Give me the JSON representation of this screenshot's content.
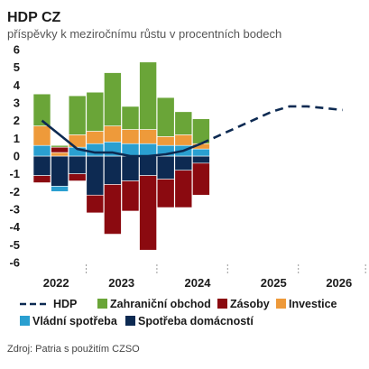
{
  "chart_data": {
    "type": "bar",
    "title": "HDP CZ",
    "subtitle": "příspěvky k meziročnímu růstu v procentních bodech",
    "ylim": [
      -6,
      6
    ],
    "yticks": [
      6,
      5,
      4,
      3,
      2,
      1,
      0,
      -1,
      -2,
      -3,
      -4,
      -5,
      -6
    ],
    "xticks": [
      "2022",
      "2023",
      "2024",
      "2025",
      "2026"
    ],
    "categories": [
      "2022 Q1",
      "2022 Q2",
      "2022 Q3",
      "2022 Q4",
      "2023 Q1",
      "2023 Q2",
      "2023 Q3",
      "2023 Q4",
      "2024 Q1",
      "2024 Q2"
    ],
    "series": [
      {
        "name": "Spotřeba domácností",
        "color": "#0d2a52",
        "values": [
          -1.1,
          -1.7,
          -1.0,
          -2.2,
          -1.6,
          -1.4,
          -1.1,
          -1.3,
          -0.8,
          -0.4
        ]
      },
      {
        "name": "Vládní spotřeba",
        "color": "#2a9fd0",
        "values": [
          0.6,
          -0.3,
          0.5,
          0.7,
          0.8,
          0.7,
          0.7,
          0.6,
          0.6,
          0.4
        ]
      },
      {
        "name": "Investice",
        "color": "#ee9a3a",
        "values": [
          1.1,
          0.2,
          0.7,
          0.7,
          0.9,
          0.8,
          0.8,
          0.5,
          0.6,
          0.3
        ]
      },
      {
        "name": "Zásoby",
        "color": "#8b0a10",
        "values": [
          -0.4,
          0.3,
          -0.4,
          -1.0,
          -2.8,
          -1.7,
          -4.2,
          -1.6,
          -2.1,
          -1.8
        ]
      },
      {
        "name": "Zahraniční obchod",
        "color": "#6aa538",
        "values": [
          1.8,
          0.1,
          2.2,
          2.2,
          3.0,
          1.3,
          3.8,
          2.2,
          1.3,
          1.4
        ]
      }
    ],
    "hdp": {
      "name": "HDP",
      "color": "#0d2a52",
      "actual": [
        {
          "x": 0,
          "y": 2.0
        },
        {
          "x": 1,
          "y": 1.2
        },
        {
          "x": 2,
          "y": 0.4
        },
        {
          "x": 3,
          "y": 0.2
        },
        {
          "x": 4,
          "y": 0.2
        },
        {
          "x": 5,
          "y": 0.0
        },
        {
          "x": 6,
          "y": 0.0
        },
        {
          "x": 7,
          "y": 0.1
        },
        {
          "x": 8,
          "y": 0.3
        },
        {
          "x": 9,
          "y": 0.7
        }
      ],
      "forecast": [
        {
          "x": 9,
          "y": 0.7
        },
        {
          "x": 11,
          "y": 1.6
        },
        {
          "x": 13,
          "y": 2.5
        },
        {
          "x": 14,
          "y": 2.8
        },
        {
          "x": 15,
          "y": 2.8
        },
        {
          "x": 17,
          "y": 2.6
        }
      ]
    },
    "legend": [
      "HDP",
      "Zahraniční obchod",
      "Zásoby",
      "Investice",
      "Vládní spotřeba",
      "Spotřeba domácností"
    ],
    "grid": false,
    "legend_position": "bottom",
    "source": "Zdroj: Patria s použitím CZSO"
  }
}
